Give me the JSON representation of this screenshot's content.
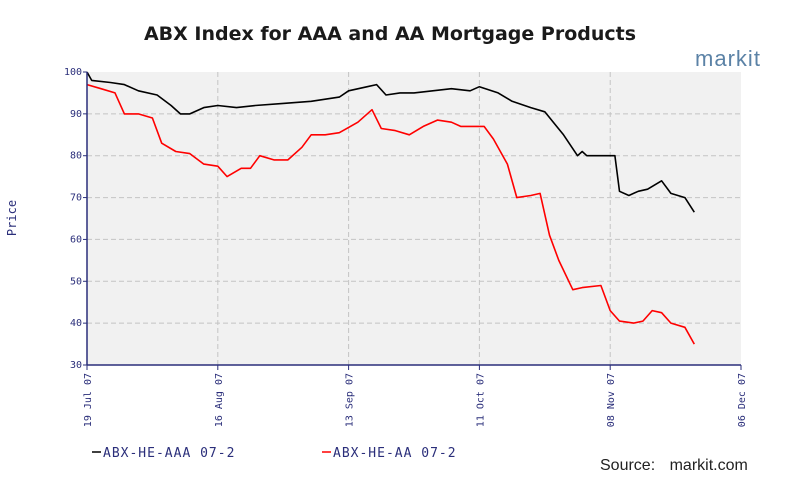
{
  "chart_data": {
    "type": "line",
    "title": "ABX Index for AAA and AA Mortgage Products",
    "ylabel": "Price",
    "xlabel": "",
    "ylim": [
      30,
      100
    ],
    "yticks": [
      "30",
      "40",
      "50",
      "60",
      "70",
      "80",
      "90",
      "100"
    ],
    "xlim": [
      "19 Jul 07",
      "06 Dec 07"
    ],
    "xticks": [
      "19 Jul 07",
      "16 Aug 07",
      "13 Sep 07",
      "11 Oct 07",
      "08 Nov 07",
      "06 Dec 07"
    ],
    "grid": true,
    "legend_position": "bottom-left",
    "series": [
      {
        "name": "ABX-HE-AAA 07-2",
        "color": "#000000",
        "points": [
          [
            "19 Jul 07",
            100
          ],
          [
            "20 Jul 07",
            98
          ],
          [
            "24 Jul 07",
            97.5
          ],
          [
            "27 Jul 07",
            97
          ],
          [
            "30 Jul 07",
            95.5
          ],
          [
            "03 Aug 07",
            94.5
          ],
          [
            "06 Aug 07",
            92
          ],
          [
            "08 Aug 07",
            90
          ],
          [
            "10 Aug 07",
            90
          ],
          [
            "13 Aug 07",
            91.5
          ],
          [
            "16 Aug 07",
            92
          ],
          [
            "20 Aug 07",
            91.5
          ],
          [
            "24 Aug 07",
            92
          ],
          [
            "30 Aug 07",
            92.5
          ],
          [
            "05 Sep 07",
            93
          ],
          [
            "11 Sep 07",
            94
          ],
          [
            "13 Sep 07",
            95.5
          ],
          [
            "17 Sep 07",
            96.5
          ],
          [
            "19 Sep 07",
            97
          ],
          [
            "21 Sep 07",
            94.5
          ],
          [
            "24 Sep 07",
            95
          ],
          [
            "27 Sep 07",
            95
          ],
          [
            "01 Oct 07",
            95.5
          ],
          [
            "05 Oct 07",
            96
          ],
          [
            "09 Oct 07",
            95.5
          ],
          [
            "11 Oct 07",
            96.5
          ],
          [
            "15 Oct 07",
            95
          ],
          [
            "18 Oct 07",
            93
          ],
          [
            "22 Oct 07",
            91.5
          ],
          [
            "25 Oct 07",
            90.5
          ],
          [
            "29 Oct 07",
            85
          ],
          [
            "01 Nov 07",
            80
          ],
          [
            "02 Nov 07",
            81
          ],
          [
            "03 Nov 07",
            80
          ],
          [
            "07 Nov 07",
            80
          ],
          [
            "09 Nov 07",
            80
          ],
          [
            "10 Nov 07",
            71.5
          ],
          [
            "12 Nov 07",
            70.5
          ],
          [
            "14 Nov 07",
            71.5
          ],
          [
            "16 Nov 07",
            72
          ],
          [
            "19 Nov 07",
            74
          ],
          [
            "21 Nov 07",
            71
          ],
          [
            "24 Nov 07",
            70
          ],
          [
            "26 Nov 07",
            66.5
          ]
        ]
      },
      {
        "name": "ABX-HE-AA 07-2",
        "color": "#ff0000",
        "points": [
          [
            "19 Jul 07",
            97
          ],
          [
            "22 Jul 07",
            96
          ],
          [
            "25 Jul 07",
            95
          ],
          [
            "27 Jul 07",
            90
          ],
          [
            "30 Jul 07",
            90
          ],
          [
            "02 Aug 07",
            89
          ],
          [
            "04 Aug 07",
            83
          ],
          [
            "07 Aug 07",
            81
          ],
          [
            "10 Aug 07",
            80.5
          ],
          [
            "13 Aug 07",
            78
          ],
          [
            "16 Aug 07",
            77.5
          ],
          [
            "18 Aug 07",
            75
          ],
          [
            "21 Aug 07",
            77
          ],
          [
            "23 Aug 07",
            77
          ],
          [
            "25 Aug 07",
            80
          ],
          [
            "28 Aug 07",
            79
          ],
          [
            "31 Aug 07",
            79
          ],
          [
            "03 Sep 07",
            82
          ],
          [
            "05 Sep 07",
            85
          ],
          [
            "08 Sep 07",
            85
          ],
          [
            "11 Sep 07",
            85.5
          ],
          [
            "15 Sep 07",
            88
          ],
          [
            "18 Sep 07",
            91
          ],
          [
            "20 Sep 07",
            86.5
          ],
          [
            "23 Sep 07",
            86
          ],
          [
            "26 Sep 07",
            85
          ],
          [
            "29 Sep 07",
            87
          ],
          [
            "02 Oct 07",
            88.5
          ],
          [
            "05 Oct 07",
            88
          ],
          [
            "07 Oct 07",
            87
          ],
          [
            "12 Oct 07",
            87
          ],
          [
            "14 Oct 07",
            84
          ],
          [
            "17 Oct 07",
            78
          ],
          [
            "19 Oct 07",
            70
          ],
          [
            "22 Oct 07",
            70.5
          ],
          [
            "24 Oct 07",
            71
          ],
          [
            "26 Oct 07",
            61
          ],
          [
            "28 Oct 07",
            55
          ],
          [
            "31 Oct 07",
            48
          ],
          [
            "02 Nov 07",
            48.5
          ],
          [
            "06 Nov 07",
            49
          ],
          [
            "08 Nov 07",
            43
          ],
          [
            "10 Nov 07",
            40.5
          ],
          [
            "13 Nov 07",
            40
          ],
          [
            "15 Nov 07",
            40.5
          ],
          [
            "17 Nov 07",
            43
          ],
          [
            "19 Nov 07",
            42.5
          ],
          [
            "21 Nov 07",
            40
          ],
          [
            "24 Nov 07",
            39
          ],
          [
            "26 Nov 07",
            35
          ]
        ]
      }
    ]
  },
  "branding": {
    "logo_text": "markit",
    "logo_color": "#5b82a6",
    "source_label": "Source:",
    "source_value": "markit.com"
  }
}
